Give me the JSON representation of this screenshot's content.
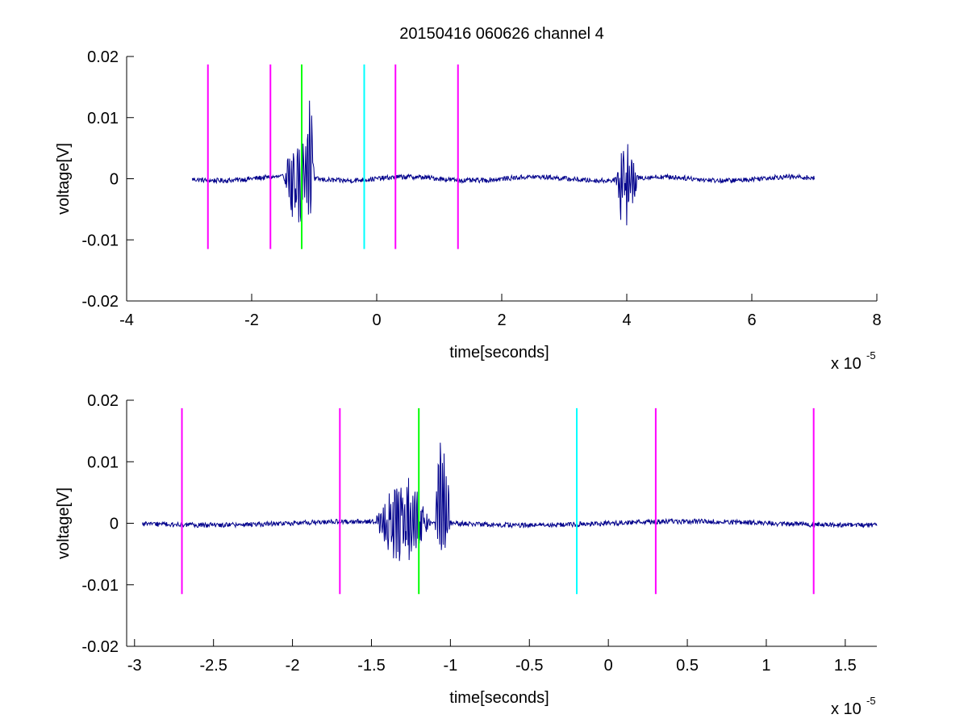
{
  "figure_title": "20150416 060626 channel 4",
  "chart_data": [
    {
      "type": "line",
      "title": "20150416 060626 channel 4",
      "xlabel": "time[seconds]",
      "ylabel": "voltage[V]",
      "x_exponent_label": "x 10",
      "x_exponent": "-5",
      "xlim": [
        -4,
        8
      ],
      "ylim": [
        -0.02,
        0.02
      ],
      "xticks": [
        -4,
        -2,
        0,
        2,
        4,
        6,
        8
      ],
      "xtick_labels": [
        "-4",
        "-2",
        "0",
        "2",
        "4",
        "6",
        "8"
      ],
      "yticks": [
        0.02,
        0.01,
        0,
        -0.01,
        -0.02
      ],
      "ytick_labels": [
        "0.02",
        "0.01",
        "0",
        "-0.01",
        "-0.02"
      ],
      "grid": false,
      "series": [
        {
          "color": "#00008b",
          "signal_range": [
            -2.95,
            7.0
          ],
          "baseline_noise": 0.0004,
          "bursts": [
            {
              "center": -1.25,
              "width": 0.5,
              "min": -0.0079,
              "max": 0.0078
            },
            {
              "center": -1.06,
              "width": 0.12,
              "min": -0.0065,
              "max": 0.017
            },
            {
              "center": 4.0,
              "width": 0.35,
              "min": -0.0105,
              "max": 0.007
            }
          ]
        }
      ],
      "markers": [
        {
          "x": -2.7,
          "color": "#ff00ff",
          "ymin": -0.0115,
          "ymax": 0.0187
        },
        {
          "x": -1.7,
          "color": "#ff00ff",
          "ymin": -0.0115,
          "ymax": 0.0187
        },
        {
          "x": -1.2,
          "color": "#00ff00",
          "ymin": -0.0115,
          "ymax": 0.0187
        },
        {
          "x": -0.2,
          "color": "#00ffff",
          "ymin": -0.0115,
          "ymax": 0.0187
        },
        {
          "x": 0.3,
          "color": "#ff00ff",
          "ymin": -0.0115,
          "ymax": 0.0187
        },
        {
          "x": 1.3,
          "color": "#ff00ff",
          "ymin": -0.0115,
          "ymax": 0.0187
        }
      ]
    },
    {
      "type": "line",
      "title": "",
      "xlabel": "time[seconds]",
      "ylabel": "voltage[V]",
      "x_exponent_label": "x 10",
      "x_exponent": "-5",
      "xlim": [
        -3.05,
        1.7
      ],
      "ylim": [
        -0.02,
        0.02
      ],
      "xticks": [
        -3,
        -2.5,
        -2,
        -1.5,
        -1,
        -0.5,
        0,
        0.5,
        1,
        1.5
      ],
      "xtick_labels": [
        "-3",
        "-2.5",
        "-2",
        "-1.5",
        "-1",
        "-0.5",
        "0",
        "0.5",
        "1",
        "1.5"
      ],
      "yticks": [
        0.02,
        0.01,
        0,
        -0.01,
        -0.02
      ],
      "ytick_labels": [
        "0.02",
        "0.01",
        "0",
        "-0.01",
        "-0.02"
      ],
      "grid": false,
      "series": [
        {
          "color": "#00008b",
          "signal_range": [
            -2.95,
            1.7
          ],
          "baseline_noise": 0.0004,
          "bursts": [
            {
              "center": -1.3,
              "width": 0.35,
              "min": -0.0079,
              "max": 0.0078
            },
            {
              "center": -1.05,
              "width": 0.1,
              "min": -0.0062,
              "max": 0.017
            }
          ]
        }
      ],
      "markers": [
        {
          "x": -2.7,
          "color": "#ff00ff",
          "ymin": -0.0115,
          "ymax": 0.0187
        },
        {
          "x": -1.7,
          "color": "#ff00ff",
          "ymin": -0.0115,
          "ymax": 0.0187
        },
        {
          "x": -1.2,
          "color": "#00ff00",
          "ymin": -0.0115,
          "ymax": 0.0187
        },
        {
          "x": -0.2,
          "color": "#00ffff",
          "ymin": -0.0115,
          "ymax": 0.0187
        },
        {
          "x": 0.3,
          "color": "#ff00ff",
          "ymin": -0.0115,
          "ymax": 0.0187
        },
        {
          "x": 1.3,
          "color": "#ff00ff",
          "ymin": -0.0115,
          "ymax": 0.0187
        }
      ]
    }
  ]
}
